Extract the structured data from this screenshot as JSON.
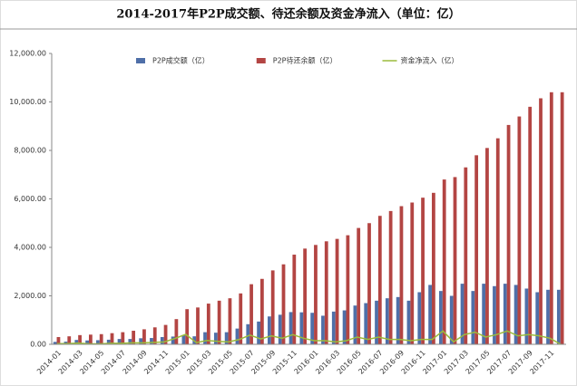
{
  "chart_data": {
    "type": "bar",
    "title": "2014-2017年P2P成交额、待还余额及资金净流入（单位：亿）",
    "categories": [
      "2014-01",
      null,
      "2014-03",
      null,
      "2014-05",
      null,
      "2014-07",
      null,
      "2014-09",
      null,
      "2014-11",
      null,
      "2015-01",
      null,
      "2015-03",
      null,
      "2015-05",
      null,
      "2015-07",
      null,
      "2015-09",
      null,
      "2015-11",
      null,
      "2016-01",
      null,
      "2016-03",
      null,
      "2016-05",
      null,
      "2016-07",
      null,
      "2016-09",
      null,
      "2016-11",
      null,
      "2017-01",
      null,
      "2017-03",
      null,
      "2017-05",
      null,
      "2017-07",
      null,
      "2017-09",
      null,
      "2017-11",
      null
    ],
    "series": [
      {
        "name": "P2P成交额（亿）",
        "type": "bar",
        "color": "#4f6fa8",
        "values": [
          100,
          110,
          180,
          160,
          170,
          190,
          220,
          220,
          250,
          260,
          300,
          320,
          380,
          330,
          500,
          480,
          500,
          650,
          830,
          940,
          1150,
          1220,
          1330,
          1320,
          1300,
          1180,
          1350,
          1400,
          1600,
          1700,
          1800,
          1900,
          1950,
          1800,
          2150,
          2450,
          2200,
          2000,
          2500,
          2200,
          2500,
          2400,
          2500,
          2450,
          2300,
          2150,
          2250,
          2250
        ]
      },
      {
        "name": "P2P待还余额（亿）",
        "type": "bar",
        "color": "#b34543",
        "values": [
          300,
          330,
          380,
          400,
          420,
          460,
          500,
          560,
          620,
          700,
          800,
          1040,
          1450,
          1520,
          1680,
          1800,
          1900,
          2100,
          2480,
          2700,
          3050,
          3300,
          3700,
          3950,
          4100,
          4250,
          4350,
          4500,
          4800,
          5000,
          5300,
          5500,
          5700,
          5850,
          6050,
          6250,
          6800,
          6900,
          7300,
          7800,
          8100,
          8500,
          9050,
          9400,
          9800,
          10150,
          10400,
          10400
        ]
      },
      {
        "name": "资金净流入（亿）",
        "type": "line",
        "color": "#9bbb3b",
        "values": [
          30,
          30,
          50,
          20,
          20,
          40,
          40,
          60,
          60,
          80,
          100,
          240,
          410,
          70,
          160,
          120,
          100,
          200,
          380,
          220,
          350,
          250,
          400,
          250,
          150,
          150,
          100,
          150,
          300,
          200,
          300,
          200,
          200,
          150,
          200,
          200,
          550,
          100,
          400,
          500,
          300,
          400,
          550,
          350,
          400,
          350,
          250,
          0
        ]
      }
    ],
    "ylim": [
      0,
      12000
    ],
    "yticks": [
      {
        "value": 0,
        "label": "0.00"
      },
      {
        "value": 2000,
        "label": "2,000.00"
      },
      {
        "value": 4000,
        "label": "4,000.00"
      },
      {
        "value": 6000,
        "label": "6,000.00"
      },
      {
        "value": 8000,
        "label": "8,000.00"
      },
      {
        "value": 10000,
        "label": "10,000.00"
      },
      {
        "value": 12000,
        "label": "12,000.00"
      }
    ],
    "legend": "top"
  }
}
